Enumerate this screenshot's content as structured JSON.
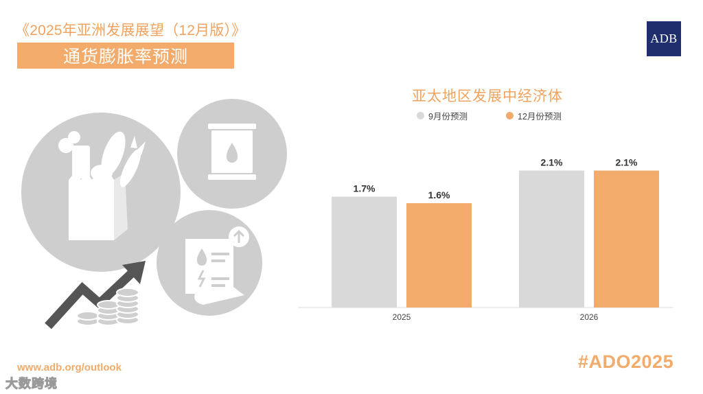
{
  "header": {
    "report_title": "《2025年亚洲发展展望（12月版）》",
    "subtitle": "通货膨胀率预测",
    "logo_text": "ADB"
  },
  "illustration_icons": [
    "grocery-bag-icon",
    "oil-barrel-icon",
    "utility-bill-icon",
    "rising-arrow-icon",
    "coin-stack-icon"
  ],
  "chart_data": {
    "type": "bar",
    "title": "亚太地区发展中经济体",
    "categories": [
      "2025",
      "2026"
    ],
    "series": [
      {
        "name": "9月份预测",
        "values": [
          1.7,
          2.1
        ],
        "labels": [
          "1.7%",
          "2.1%"
        ],
        "color": "#d9d9d9"
      },
      {
        "name": "12月份预测",
        "values": [
          1.6,
          2.1
        ],
        "labels": [
          "1.6%",
          "2.1%"
        ],
        "color": "#f2ab6a"
      }
    ],
    "ylim": [
      0,
      2.4
    ],
    "grid": false,
    "legend_position": "top-center",
    "xlabel": "",
    "ylabel": ""
  },
  "footer": {
    "url": "www.adb.org/outlook",
    "hashtag": "#ADO2025",
    "watermark": "大数跨境"
  },
  "colors": {
    "accent": "#f2ab6a",
    "title_orange": "#f0a35f",
    "logo_navy": "#1f2f6e",
    "icon_gray": "#cecece"
  }
}
